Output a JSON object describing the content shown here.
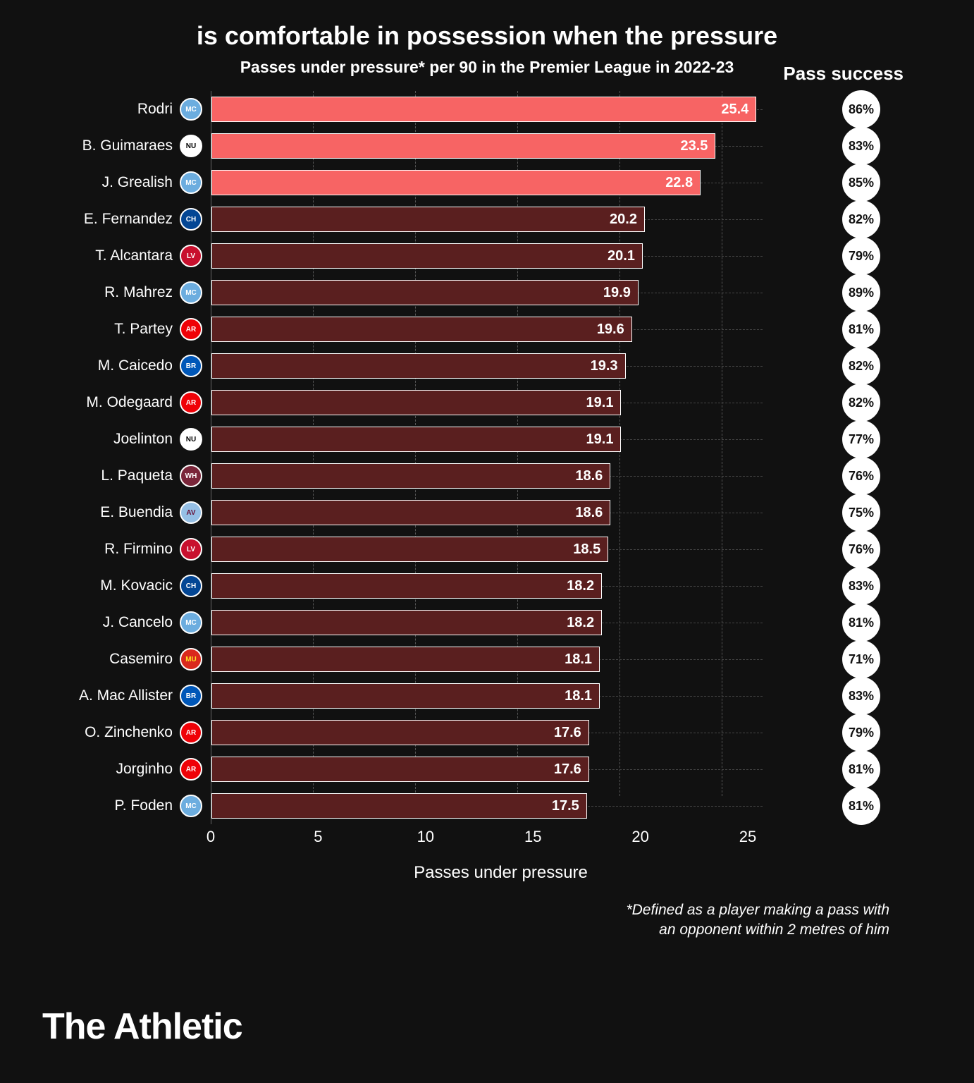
{
  "title": "is comfortable in possession when the pressure",
  "subtitle": "Passes under pressure* per 90 in the Premier League in 2022-23",
  "success_header": "Pass success",
  "xlabel": "Passes under pressure",
  "footnote_line1": "*Defined as a player making a pass with",
  "footnote_line2": "an opponent within 2 metres of him",
  "brand": "The Athletic",
  "chart": {
    "type": "bar",
    "xmin": 0,
    "xmax": 27,
    "xticks": [
      0,
      5,
      10,
      15,
      20,
      25
    ],
    "highlight_color": "#f76464",
    "normal_color": "#5a1f1f",
    "bar_border": "#ffffff",
    "grid_color": "#555555",
    "background": "#111111",
    "title_fontsize": 36,
    "subtitle_fontsize": 23,
    "label_fontsize": 21,
    "value_fontsize": 20,
    "tick_fontsize": 22,
    "badge_bg": "#ffffff",
    "badge_text": "#111111"
  },
  "teams": {
    "mancity": {
      "bg": "#6caddf",
      "fg": "#ffffff",
      "abbr": "MC"
    },
    "newcastle": {
      "bg": "#ffffff",
      "fg": "#000000",
      "abbr": "NU"
    },
    "chelsea": {
      "bg": "#034694",
      "fg": "#ffffff",
      "abbr": "CH"
    },
    "liverpool": {
      "bg": "#c8102e",
      "fg": "#ffffff",
      "abbr": "LV"
    },
    "arsenal": {
      "bg": "#ef0107",
      "fg": "#ffffff",
      "abbr": "AR"
    },
    "brighton": {
      "bg": "#0057b8",
      "fg": "#ffffff",
      "abbr": "BR"
    },
    "westham": {
      "bg": "#7a263a",
      "fg": "#ffffff",
      "abbr": "WH"
    },
    "villa": {
      "bg": "#95bfe5",
      "fg": "#670e36",
      "abbr": "AV"
    },
    "manutd": {
      "bg": "#da291c",
      "fg": "#fbe122",
      "abbr": "MU"
    }
  },
  "players": [
    {
      "name": "Rodri",
      "team": "mancity",
      "value": 25.4,
      "success": "86%",
      "highlight": true
    },
    {
      "name": "B. Guimaraes",
      "team": "newcastle",
      "value": 23.5,
      "success": "83%",
      "highlight": true
    },
    {
      "name": "J. Grealish",
      "team": "mancity",
      "value": 22.8,
      "success": "85%",
      "highlight": true
    },
    {
      "name": "E. Fernandez",
      "team": "chelsea",
      "value": 20.2,
      "success": "82%",
      "highlight": false
    },
    {
      "name": "T. Alcantara",
      "team": "liverpool",
      "value": 20.1,
      "success": "79%",
      "highlight": false
    },
    {
      "name": "R. Mahrez",
      "team": "mancity",
      "value": 19.9,
      "success": "89%",
      "highlight": false
    },
    {
      "name": "T. Partey",
      "team": "arsenal",
      "value": 19.6,
      "success": "81%",
      "highlight": false
    },
    {
      "name": "M. Caicedo",
      "team": "brighton",
      "value": 19.3,
      "success": "82%",
      "highlight": false
    },
    {
      "name": "M. Odegaard",
      "team": "arsenal",
      "value": 19.1,
      "success": "82%",
      "highlight": false
    },
    {
      "name": "Joelinton",
      "team": "newcastle",
      "value": 19.1,
      "success": "77%",
      "highlight": false
    },
    {
      "name": "L. Paqueta",
      "team": "westham",
      "value": 18.6,
      "success": "76%",
      "highlight": false
    },
    {
      "name": "E. Buendia",
      "team": "villa",
      "value": 18.6,
      "success": "75%",
      "highlight": false
    },
    {
      "name": "R. Firmino",
      "team": "liverpool",
      "value": 18.5,
      "success": "76%",
      "highlight": false
    },
    {
      "name": "M. Kovacic",
      "team": "chelsea",
      "value": 18.2,
      "success": "83%",
      "highlight": false
    },
    {
      "name": "J. Cancelo",
      "team": "mancity",
      "value": 18.2,
      "success": "81%",
      "highlight": false
    },
    {
      "name": "Casemiro",
      "team": "manutd",
      "value": 18.1,
      "success": "71%",
      "highlight": false
    },
    {
      "name": "A. Mac Allister",
      "team": "brighton",
      "value": 18.1,
      "success": "83%",
      "highlight": false
    },
    {
      "name": "O. Zinchenko",
      "team": "arsenal",
      "value": 17.6,
      "success": "79%",
      "highlight": false
    },
    {
      "name": "Jorginho",
      "team": "arsenal",
      "value": 17.6,
      "success": "81%",
      "highlight": false
    },
    {
      "name": "P. Foden",
      "team": "mancity",
      "value": 17.5,
      "success": "81%",
      "highlight": false
    }
  ]
}
